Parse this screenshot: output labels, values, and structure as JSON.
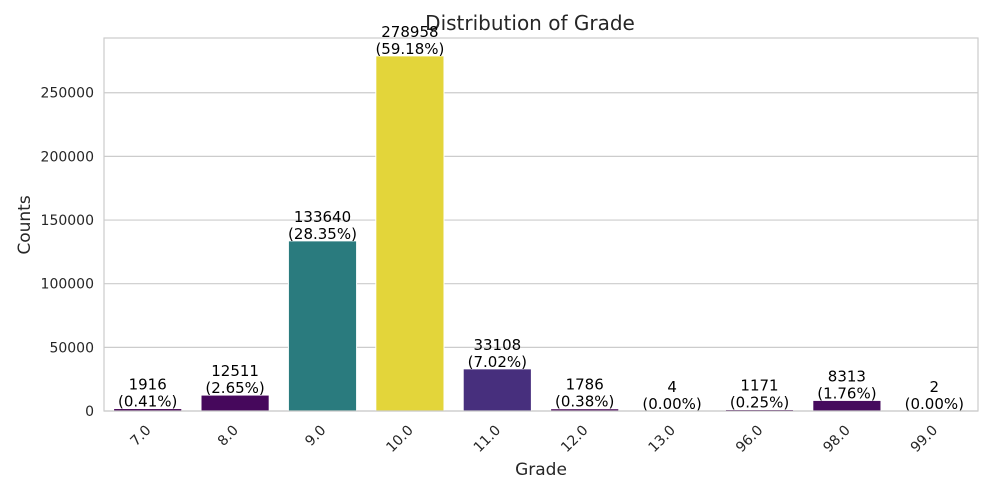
{
  "chart_data": {
    "type": "bar",
    "title": "Distribution of Grade",
    "xlabel": "Grade",
    "ylabel": "Counts",
    "categories": [
      "7.0",
      "8.0",
      "9.0",
      "10.0",
      "11.0",
      "12.0",
      "13.0",
      "96.0",
      "98.0",
      "99.0"
    ],
    "values": [
      1916,
      12511,
      133640,
      278958,
      33108,
      1786,
      4,
      1171,
      8313,
      2
    ],
    "percent_labels": [
      "(0.41%)",
      "(2.65%)",
      "(28.35%)",
      "(59.18%)",
      "(7.02%)",
      "(0.38%)",
      "(0.00%)",
      "(0.25%)",
      "(1.76%)",
      "(0.00%)"
    ],
    "colors": [
      "#440154",
      "#46085c",
      "#2a7b7e",
      "#e3d53a",
      "#472f7d",
      "#440154",
      "#440154",
      "#440154",
      "#460a5d",
      "#440154"
    ],
    "ylim": [
      0,
      293000
    ],
    "yticks": [
      0,
      50000,
      100000,
      150000,
      200000,
      250000
    ],
    "grid": "horizontal",
    "xtick_rotation": 45,
    "legend": "none"
  }
}
